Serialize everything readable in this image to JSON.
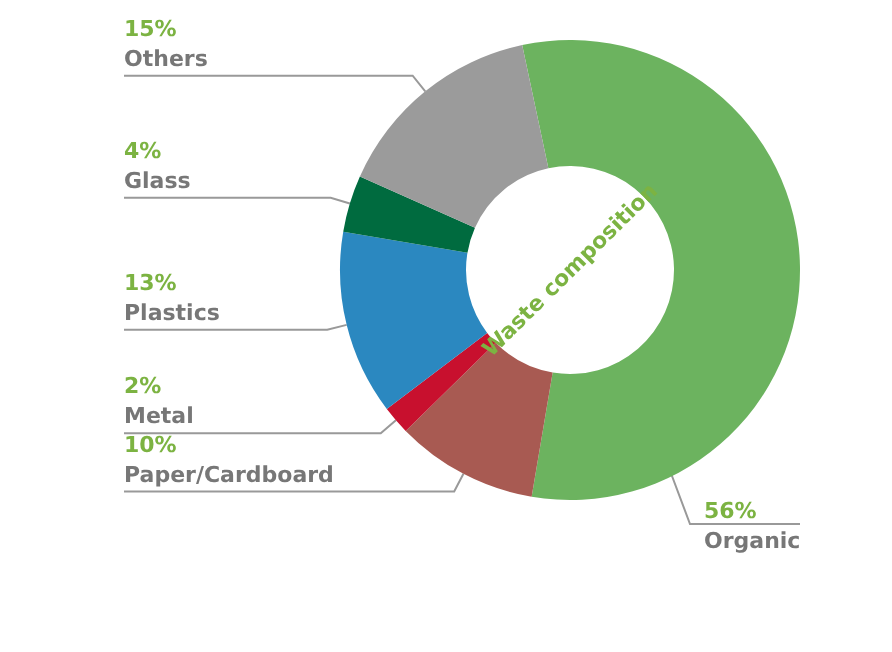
{
  "chart_data": {
    "type": "donut",
    "title": "Waste composition",
    "categories": [
      "Organic",
      "Paper/Cardboard",
      "Metal",
      "Plastics",
      "Glass",
      "Others"
    ],
    "values": [
      56,
      10,
      2,
      13,
      4,
      15
    ],
    "colors": [
      "#6cb35f",
      "#a85a52",
      "#c8102e",
      "#2b88c0",
      "#006b3f",
      "#9b9b9b"
    ],
    "value_labels": [
      "56%",
      "10%",
      "2%",
      "13%",
      "4%",
      "15%"
    ],
    "legend": false
  }
}
